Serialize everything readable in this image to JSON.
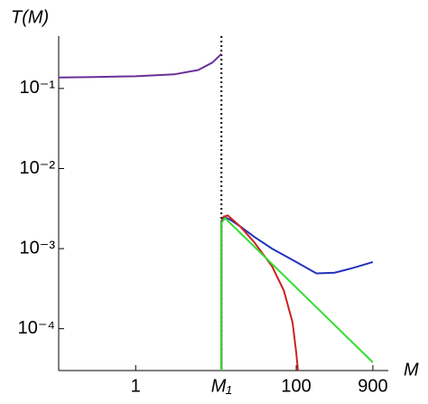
{
  "chart_data": {
    "type": "line",
    "ylabel": "T(M)",
    "xlabel": "M",
    "xscale": "log",
    "yscale": "log",
    "xlim": [
      0.11,
      1400
    ],
    "ylim": [
      3e-05,
      0.45
    ],
    "xticks": [
      1,
      {
        "value": 11.7,
        "label": "M₁"
      },
      100,
      900
    ],
    "yticks": [
      {
        "value": 0.1,
        "label": "10⁻¹"
      },
      {
        "value": 0.01,
        "label": "10⁻²"
      },
      {
        "value": 0.001,
        "label": "10⁻³"
      },
      {
        "value": 0.0001,
        "label": "10⁻⁴"
      }
    ],
    "series": [
      {
        "color": "#6a2f9a",
        "x": [
          0.11,
          0.3,
          1,
          3,
          6,
          9,
          11.7
        ],
        "values": [
          0.137,
          0.139,
          0.142,
          0.15,
          0.17,
          0.21,
          0.27
        ]
      },
      {
        "color": "#2233bb",
        "x": [
          11.7,
          11.7,
          12.5,
          15,
          20,
          30,
          50,
          100,
          178,
          300,
          500,
          900
        ],
        "values": [
          3e-05,
          0.0022,
          0.0025,
          0.0023,
          0.0019,
          0.0014,
          0.001,
          0.00068,
          0.00049,
          0.0005,
          0.00057,
          0.00068
        ]
      },
      {
        "color": "#cc2222",
        "x": [
          11.7,
          11.7,
          12.5,
          14,
          20,
          30,
          50,
          70,
          90,
          100,
          105
        ],
        "values": [
          3e-05,
          0.0021,
          0.0025,
          0.0026,
          0.0019,
          0.0012,
          0.0006,
          0.0003,
          0.00012,
          5e-05,
          3e-05
        ]
      },
      {
        "color": "#33dd33",
        "x": [
          11.7,
          11.7,
          13,
          900
        ],
        "values": [
          3e-05,
          0.0021,
          0.0024,
          3.8e-05
        ]
      }
    ]
  }
}
